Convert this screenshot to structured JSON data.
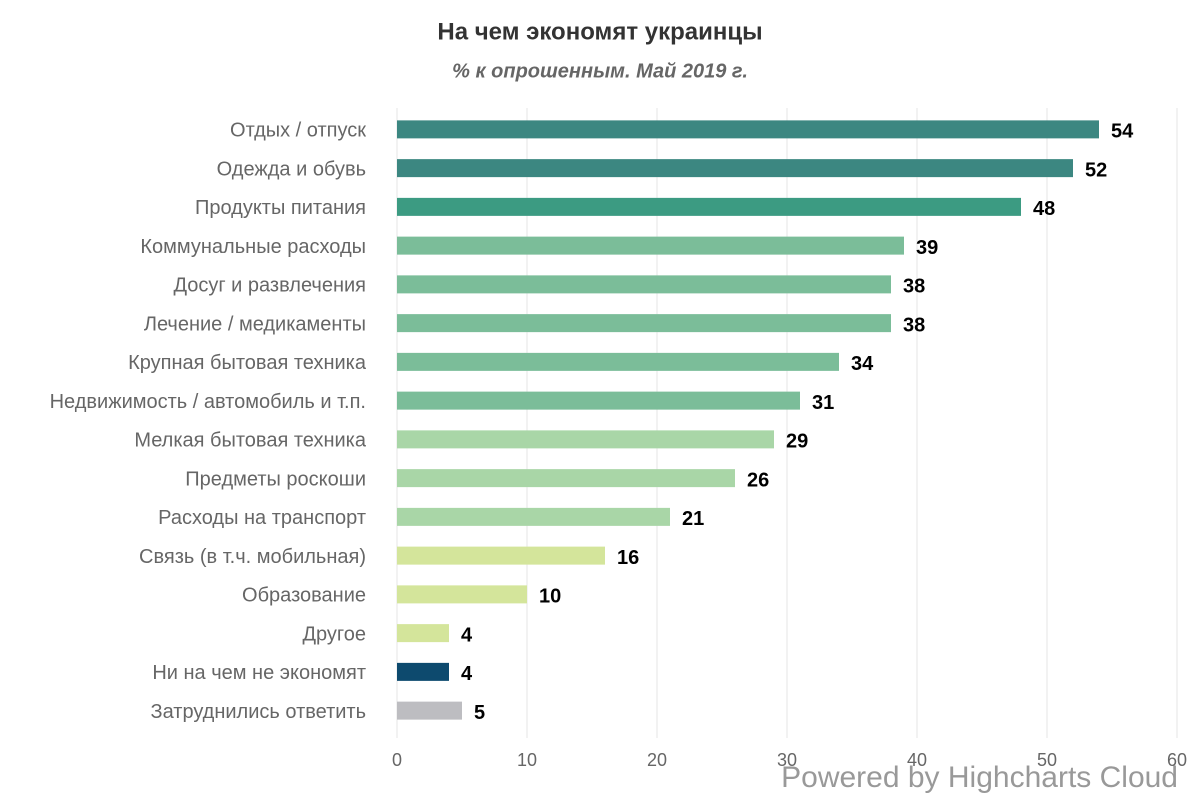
{
  "chart_data": {
    "type": "bar",
    "orientation": "horizontal",
    "title": "На чем экономят украинцы",
    "subtitle": "% к опрошенным. Май 2019 г.",
    "credits": "Powered by Highcharts Cloud",
    "categories": [
      "Отдых / отпуск",
      "Одежда и обувь",
      "Продукты питания",
      "Коммунальные расходы",
      "Досуг и развлечения",
      "Лечение / медикаменты",
      "Крупная бытовая техника",
      "Недвижимость / автомобиль и т.п.",
      "Мелкая бытовая техника",
      "Предметы роскоши",
      "Расходы на транспорт",
      "Связь (в т.ч. мобильная)",
      "Образование",
      "Другое",
      "Ни на чем не экономят",
      "Затруднились ответить"
    ],
    "values": [
      54,
      52,
      48,
      39,
      38,
      38,
      34,
      31,
      29,
      26,
      21,
      16,
      10,
      4,
      4,
      5
    ],
    "colors": [
      "#3c8781",
      "#3c8781",
      "#3c9b82",
      "#7bbd99",
      "#7bbd99",
      "#7bbd99",
      "#7bbd99",
      "#7bbd99",
      "#a9d6a7",
      "#a9d6a7",
      "#a9d6a7",
      "#d4e59b",
      "#d4e59b",
      "#d4e59b",
      "#0d4a6e",
      "#bdbdc1"
    ],
    "xlim": [
      0,
      60
    ],
    "xticks": [
      0,
      10,
      20,
      30,
      40,
      50,
      60
    ],
    "grid": true
  }
}
